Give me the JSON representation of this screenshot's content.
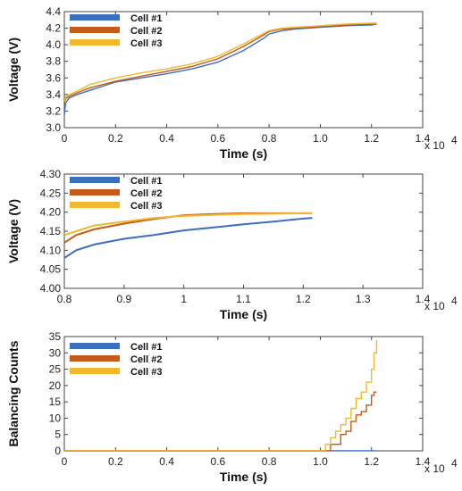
{
  "chart_data": [
    {
      "type": "line",
      "xlabel": "Time (s)",
      "ylabel": "Voltage (V)",
      "x_multiplier": "x 10",
      "x_exponent": "4",
      "xlim": [
        0,
        1.4
      ],
      "ylim": [
        3.0,
        4.4
      ],
      "xticks": [
        "0",
        "0.2",
        "0.4",
        "0.6",
        "0.8",
        "1.0",
        "1.2",
        "1.4"
      ],
      "yticks": [
        "3.0",
        "3.2",
        "3.4",
        "3.6",
        "3.8",
        "4.0",
        "4.2",
        "4.4"
      ],
      "grid": false,
      "legend_position": "top-left",
      "series": [
        {
          "name": "Cell #1",
          "color": "#3c6fbd",
          "x": [
            0,
            0.005,
            0.02,
            0.05,
            0.1,
            0.2,
            0.3,
            0.4,
            0.5,
            0.6,
            0.7,
            0.78,
            0.8,
            0.85,
            0.9,
            1.0,
            1.1,
            1.2,
            1.22
          ],
          "y": [
            3.15,
            3.3,
            3.36,
            3.4,
            3.45,
            3.55,
            3.6,
            3.65,
            3.71,
            3.79,
            3.93,
            4.08,
            4.13,
            4.17,
            4.19,
            4.21,
            4.23,
            4.24,
            4.25
          ]
        },
        {
          "name": "Cell #2",
          "color": "#c55a1a",
          "x": [
            0,
            0.005,
            0.02,
            0.05,
            0.1,
            0.2,
            0.3,
            0.4,
            0.5,
            0.6,
            0.7,
            0.78,
            0.8,
            0.85,
            0.9,
            1.0,
            1.1,
            1.2,
            1.22
          ],
          "y": [
            3.3,
            3.35,
            3.38,
            3.42,
            3.48,
            3.56,
            3.62,
            3.68,
            3.74,
            3.83,
            3.98,
            4.12,
            4.16,
            4.19,
            4.2,
            4.22,
            4.24,
            4.25,
            4.26
          ]
        },
        {
          "name": "Cell #3",
          "color": "#f2b92e",
          "x": [
            0,
            0.005,
            0.02,
            0.05,
            0.1,
            0.2,
            0.3,
            0.4,
            0.5,
            0.6,
            0.7,
            0.78,
            0.8,
            0.85,
            0.9,
            1.0,
            1.1,
            1.2,
            1.22
          ],
          "y": [
            3.32,
            3.37,
            3.4,
            3.44,
            3.52,
            3.6,
            3.66,
            3.71,
            3.77,
            3.86,
            4.01,
            4.14,
            4.17,
            4.2,
            4.21,
            4.23,
            4.25,
            4.26,
            4.26
          ]
        }
      ]
    },
    {
      "type": "line",
      "xlabel": "Time (s)",
      "ylabel": "Voltage (V)",
      "x_multiplier": "x 10",
      "x_exponent": "4",
      "xlim": [
        0.8,
        1.4
      ],
      "ylim": [
        4.0,
        4.3
      ],
      "xticks": [
        "0.8",
        "0.9",
        "1",
        "1.1",
        "1.2",
        "1.3",
        "1.4"
      ],
      "yticks": [
        "4.00",
        "4.05",
        "4.10",
        "4.15",
        "4.20",
        "4.25",
        "4.30"
      ],
      "grid": false,
      "legend_position": "top-left",
      "series": [
        {
          "name": "Cell #1",
          "color": "#3c6fbd",
          "x": [
            0.8,
            0.82,
            0.85,
            0.9,
            0.95,
            1.0,
            1.05,
            1.1,
            1.15,
            1.2,
            1.215
          ],
          "y": [
            4.08,
            4.1,
            4.115,
            4.13,
            4.14,
            4.152,
            4.16,
            4.168,
            4.175,
            4.183,
            4.185
          ]
        },
        {
          "name": "Cell #2",
          "color": "#c55a1a",
          "x": [
            0.8,
            0.82,
            0.85,
            0.9,
            0.95,
            1.0,
            1.05,
            1.1,
            1.15,
            1.2,
            1.215
          ],
          "y": [
            4.12,
            4.14,
            4.155,
            4.17,
            4.182,
            4.192,
            4.195,
            4.197,
            4.197,
            4.197,
            4.197
          ]
        },
        {
          "name": "Cell #3",
          "color": "#f2b92e",
          "x": [
            0.8,
            0.82,
            0.85,
            0.9,
            0.95,
            1.0,
            1.05,
            1.1,
            1.15,
            1.2,
            1.215
          ],
          "y": [
            4.14,
            4.15,
            4.165,
            4.175,
            4.185,
            4.19,
            4.193,
            4.195,
            4.196,
            4.197,
            4.197
          ]
        }
      ]
    },
    {
      "type": "line",
      "xlabel": "Time (s)",
      "ylabel": "Balancing Counts",
      "x_multiplier": "x 10",
      "x_exponent": "4",
      "xlim": [
        0,
        1.4
      ],
      "ylim": [
        0,
        35
      ],
      "xticks": [
        "0",
        "0.2",
        "0.4",
        "0.6",
        "0.8",
        "1.0",
        "1.2",
        "1.4"
      ],
      "yticks": [
        "0",
        "5",
        "10",
        "15",
        "20",
        "25",
        "30",
        "35"
      ],
      "grid": false,
      "legend_position": "top-left",
      "series": [
        {
          "name": "Cell #1",
          "color": "#3c6fbd",
          "x": [
            0,
            1.22
          ],
          "y": [
            0,
            0
          ]
        },
        {
          "name": "Cell #2",
          "color": "#c55a1a",
          "x": [
            0,
            1.02,
            1.04,
            1.06,
            1.08,
            1.1,
            1.12,
            1.14,
            1.16,
            1.18,
            1.2,
            1.21,
            1.22
          ],
          "y": [
            0,
            0,
            2,
            2,
            5,
            6,
            9,
            11,
            12,
            14,
            17,
            18,
            18
          ]
        },
        {
          "name": "Cell #3",
          "color": "#f2b92e",
          "x": [
            0,
            1.0,
            1.02,
            1.04,
            1.06,
            1.08,
            1.1,
            1.12,
            1.14,
            1.16,
            1.18,
            1.2,
            1.21,
            1.22
          ],
          "y": [
            0,
            0,
            2,
            4,
            6,
            8,
            10,
            13,
            16,
            18,
            21,
            25,
            30,
            34
          ]
        }
      ]
    }
  ]
}
